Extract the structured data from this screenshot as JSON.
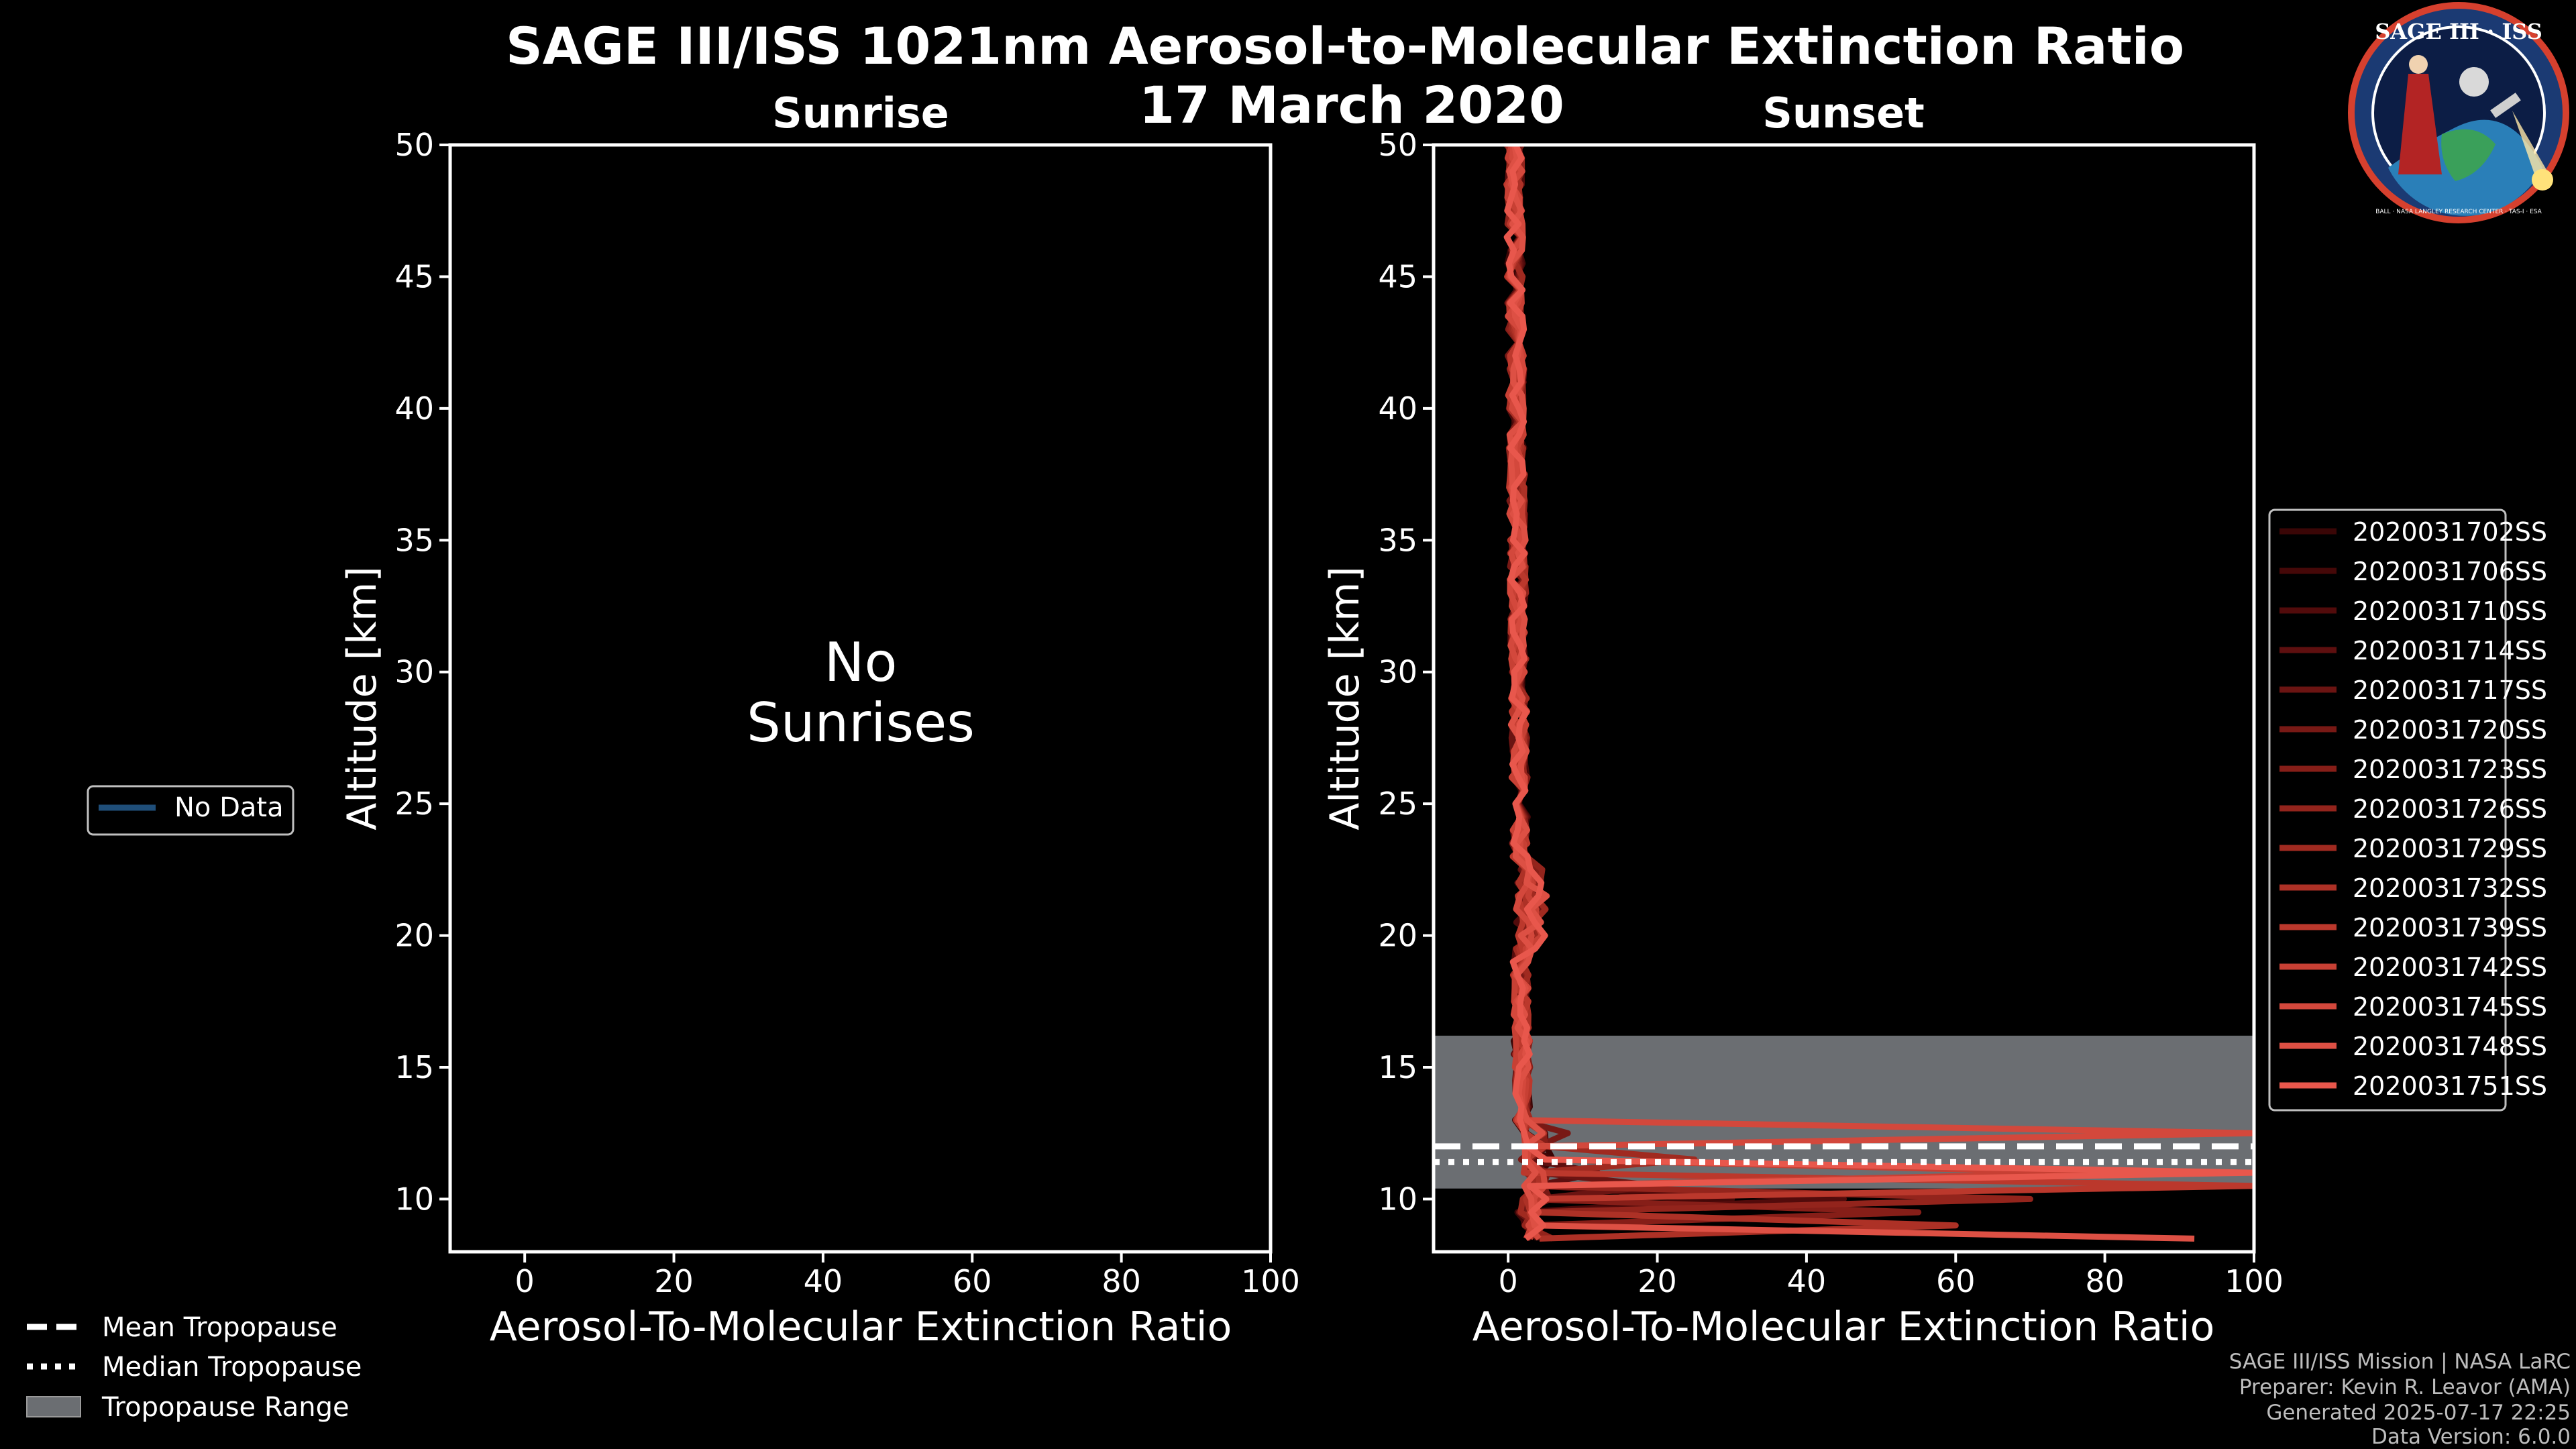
{
  "figure": {
    "title_line1": "SAGE III/ISS 1021nm Aerosol-to-Molecular Extinction Ratio",
    "title_line2": "17 March 2020",
    "footer": [
      "SAGE III/ISS Mission | NASA LaRC",
      "Preparer: Kevin R. Leavor (AMA)",
      "Generated 2025-07-17 22:25",
      "Data Version: 6.0.0"
    ],
    "logo": {
      "top_text": "SAGE III · ISS",
      "ring_text": "BALL · NASA LANGLEY RESEARCH CENTER · TAS-I · ESA",
      "icon": "sage-iii-iss-mission-patch"
    },
    "left_legend": {
      "no_data_label": "No Data",
      "no_data_color": "#1f4e79"
    },
    "bottom_legend": {
      "mean_label": "Mean Tropopause",
      "median_label": "Median Tropopause",
      "range_label": "Tropopause Range"
    },
    "colors": {
      "background": "#000000",
      "tropopause_band": "#6b6e72",
      "series_base": "#e8574c"
    }
  },
  "chart_data": [
    {
      "type": "line",
      "title": "Sunrise",
      "xlabel": "Aerosol-To-Molecular Extinction Ratio",
      "ylabel": "Altitude [km]",
      "xlim": [
        -10,
        100
      ],
      "ylim": [
        8,
        50
      ],
      "xticks": [
        0,
        20,
        40,
        60,
        80,
        100
      ],
      "yticks": [
        10,
        15,
        20,
        25,
        30,
        35,
        40,
        45,
        50
      ],
      "annotation_line1": "No",
      "annotation_line2": "Sunrises",
      "series": []
    },
    {
      "type": "line",
      "title": "Sunset",
      "xlabel": "Aerosol-To-Molecular Extinction Ratio",
      "ylabel": "Altitude [km]",
      "xlim": [
        -10,
        100
      ],
      "ylim": [
        8,
        50
      ],
      "xticks": [
        0,
        20,
        40,
        60,
        80,
        100
      ],
      "yticks": [
        10,
        15,
        20,
        25,
        30,
        35,
        40,
        45,
        50
      ],
      "tropopause": {
        "mean_km": 12.0,
        "median_km": 11.4,
        "range_km": [
          10.4,
          16.2
        ]
      },
      "series": [
        {
          "name": "2020031702SS",
          "color": "#3a0606",
          "peak_km": 11.5,
          "peak_value": 6
        },
        {
          "name": "2020031706SS",
          "color": "#450808",
          "peak_km": 10.2,
          "peak_value": 30
        },
        {
          "name": "2020031710SS",
          "color": "#520b0b",
          "peak_km": 9.8,
          "peak_value": 45
        },
        {
          "name": "2020031714SS",
          "color": "#5e0f0f",
          "peak_km": 11.0,
          "peak_value": 12
        },
        {
          "name": "2020031717SS",
          "color": "#6b1412",
          "peak_km": 10.6,
          "peak_value": 20
        },
        {
          "name": "2020031720SS",
          "color": "#781915",
          "peak_km": 12.5,
          "peak_value": 8
        },
        {
          "name": "2020031723SS",
          "color": "#861e18",
          "peak_km": 9.5,
          "peak_value": 55
        },
        {
          "name": "2020031726SS",
          "color": "#93241c",
          "peak_km": 10.0,
          "peak_value": 70
        },
        {
          "name": "2020031729SS",
          "color": "#a02a20",
          "peak_km": 11.3,
          "peak_value": 25
        },
        {
          "name": "2020031732SS",
          "color": "#ad3126",
          "peak_km": 9.0,
          "peak_value": 60
        },
        {
          "name": "2020031739SS",
          "color": "#bb382c",
          "peak_km": 10.3,
          "peak_value": 100
        },
        {
          "name": "2020031742SS",
          "color": "#c74034",
          "peak_km": 11.0,
          "peak_value": 80
        },
        {
          "name": "2020031745SS",
          "color": "#d3483c",
          "peak_km": 12.4,
          "peak_value": 100
        },
        {
          "name": "2020031748SS",
          "color": "#dd5044",
          "peak_km": 8.6,
          "peak_value": 92
        },
        {
          "name": "2020031751SS",
          "color": "#e8574c",
          "peak_km": 11.2,
          "peak_value": 100
        }
      ]
    }
  ]
}
